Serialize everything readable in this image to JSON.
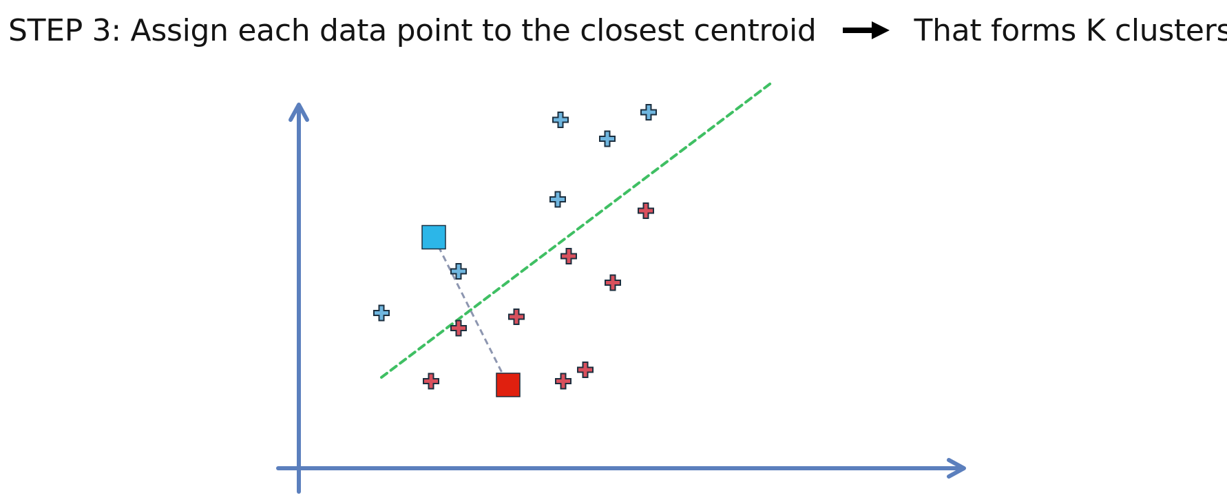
{
  "heading": {
    "step_text": "STEP 3: Assign each data point to the closest centroid",
    "result_text": "That forms K clusters",
    "arrow_icon": "right-arrow-icon"
  },
  "colors": {
    "axis": "#5b7fbd",
    "cluster_1_point": "#6fb6df",
    "cluster_1_centroid": "#2cb6e8",
    "cluster_2_point": "#d9505d",
    "cluster_2_centroid": "#e0200f",
    "separator": "#3fbf63",
    "distance_line": "#8d96b0",
    "marker_outline": "#1c2f3f"
  },
  "diagram": {
    "clusters": [
      {
        "id": "cluster-1",
        "color_key": "cluster_1",
        "centroid": [
          2.45,
          6.1
        ],
        "points": [
          [
            1.5,
            4.1
          ],
          [
            2.9,
            5.2
          ],
          [
            4.7,
            7.1
          ],
          [
            4.75,
            9.2
          ],
          [
            5.6,
            8.7
          ],
          [
            6.35,
            9.4
          ]
        ]
      },
      {
        "id": "cluster-2",
        "color_key": "cluster_2",
        "centroid": [
          3.8,
          2.2
        ],
        "points": [
          [
            2.4,
            2.3
          ],
          [
            2.9,
            3.7
          ],
          [
            3.95,
            4.0
          ],
          [
            4.9,
            5.6
          ],
          [
            5.7,
            4.9
          ],
          [
            6.3,
            6.8
          ],
          [
            4.8,
            2.3
          ],
          [
            5.2,
            2.6
          ]
        ]
      }
    ],
    "separator_line": {
      "from": [
        1.5,
        2.4
      ],
      "to": [
        8.6,
        10.2
      ]
    },
    "distance_line": {
      "from": [
        2.45,
        6.1
      ],
      "to": [
        3.8,
        2.2
      ]
    }
  }
}
